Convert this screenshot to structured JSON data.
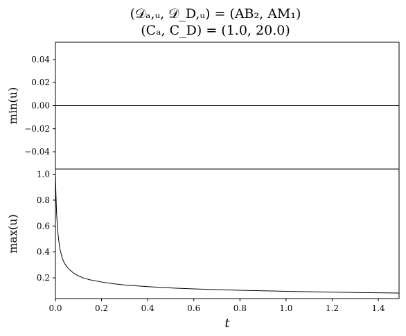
{
  "chart_data": [
    {
      "type": "line",
      "title_line1": "(𝒟ₐ,ᵤ, 𝒟_D,ᵤ) = (AB₂, AM₁)",
      "title_line2": "(Cₐ, C_D) = (1.0, 20.0)",
      "ylabel": "min(u)",
      "xlim": [
        0,
        1.49
      ],
      "ylim": [
        -0.055,
        0.055
      ],
      "yticks": [
        "−0.04",
        "−0.02",
        "0.00",
        "0.02",
        "0.04"
      ],
      "ytick_values": [
        -0.04,
        -0.02,
        0.0,
        0.02,
        0.04
      ],
      "x": [
        0.0,
        1.49
      ],
      "y": [
        0.0,
        0.0
      ]
    },
    {
      "type": "line",
      "ylabel": "max(u)",
      "xlabel": "t",
      "xlim": [
        0,
        1.49
      ],
      "ylim": [
        0.04,
        1.04
      ],
      "xticks": [
        "0.0",
        "0.2",
        "0.4",
        "0.6",
        "0.8",
        "1.0",
        "1.2",
        "1.4"
      ],
      "xtick_values": [
        0.0,
        0.2,
        0.4,
        0.6,
        0.8,
        1.0,
        1.2,
        1.4
      ],
      "yticks": [
        "0.2",
        "0.4",
        "0.6",
        "0.8",
        "1.0"
      ],
      "ytick_values": [
        0.2,
        0.4,
        0.6,
        0.8,
        1.0
      ],
      "x": [
        0.0,
        0.002,
        0.005,
        0.01,
        0.015,
        0.02,
        0.03,
        0.04,
        0.05,
        0.06,
        0.08,
        0.1,
        0.12,
        0.15,
        0.2,
        0.25,
        0.3,
        0.4,
        0.5,
        0.6,
        0.7,
        0.8,
        0.9,
        1.0,
        1.1,
        1.2,
        1.3,
        1.4,
        1.49
      ],
      "y": [
        1.0,
        0.86,
        0.7,
        0.56,
        0.48,
        0.42,
        0.35,
        0.31,
        0.285,
        0.265,
        0.235,
        0.215,
        0.2,
        0.185,
        0.168,
        0.155,
        0.145,
        0.132,
        0.122,
        0.115,
        0.109,
        0.104,
        0.1,
        0.096,
        0.093,
        0.09,
        0.087,
        0.085,
        0.083
      ]
    }
  ]
}
